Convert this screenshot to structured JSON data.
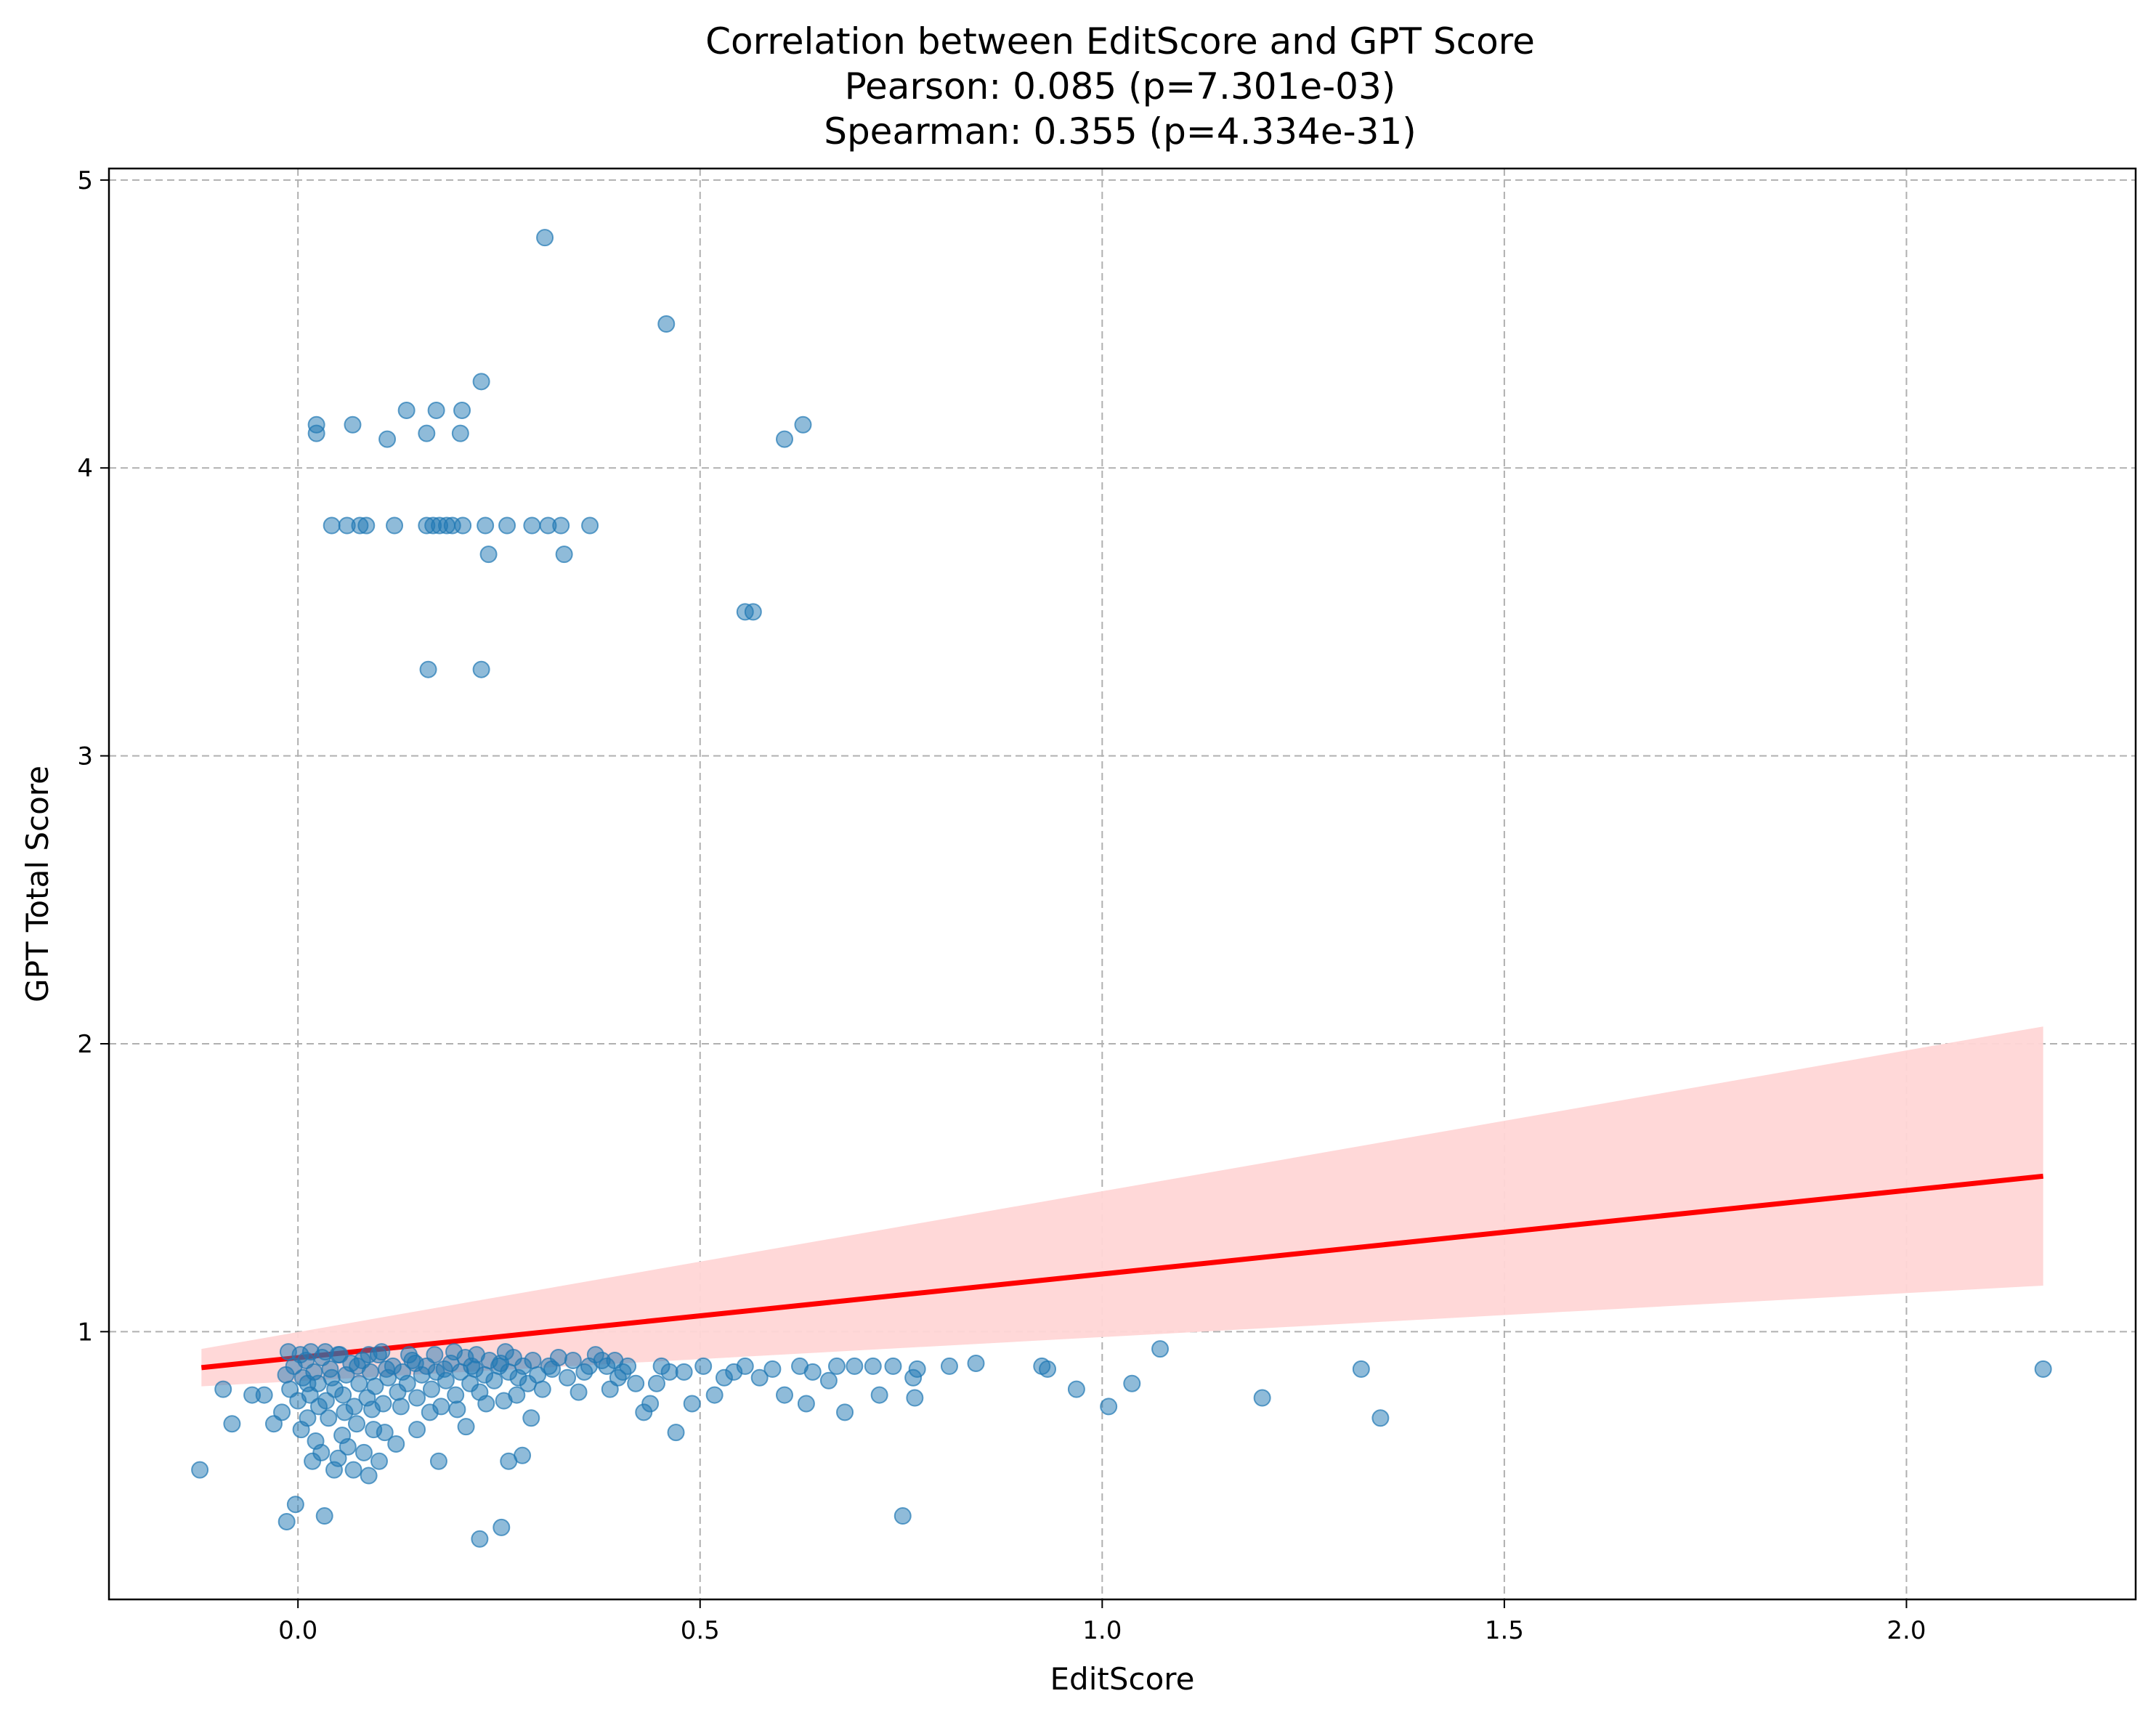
{
  "chart_data": {
    "type": "scatter",
    "title": "Correlation between EditScore and GPT Score",
    "subtitle_lines": [
      "Pearson: 0.085 (p=7.301e-03)",
      "Spearman: 0.355 (p=4.334e-31)"
    ],
    "xlabel": "EditScore",
    "ylabel": "GPT Total Score",
    "xlim": [
      -0.235,
      2.285
    ],
    "ylim": [
      0.07,
      5.04
    ],
    "xticks": [
      0.0,
      0.5,
      1.0,
      1.5,
      2.0
    ],
    "xtick_labels": [
      "0.0",
      "0.5",
      "1.0",
      "1.5",
      "2.0"
    ],
    "yticks": [
      1,
      2,
      3,
      4,
      5
    ],
    "ytick_labels": [
      "1",
      "2",
      "3",
      "4",
      "5"
    ],
    "grid": true,
    "colors": {
      "points": "#1f77b4",
      "regression_line": "#ff0000",
      "confidence_band": "#ffd6d6"
    },
    "regression": {
      "x": [
        -0.12,
        2.17
      ],
      "y": [
        0.875,
        1.54
      ],
      "ci_lower": [
        0.81,
        1.16
      ],
      "ci_upper": [
        0.94,
        2.06
      ]
    },
    "points": [
      [
        0.307,
        4.8
      ],
      [
        0.458,
        4.5
      ],
      [
        0.228,
        4.3
      ],
      [
        0.023,
        4.15
      ],
      [
        0.068,
        4.15
      ],
      [
        0.135,
        4.2
      ],
      [
        0.172,
        4.2
      ],
      [
        0.204,
        4.2
      ],
      [
        0.023,
        4.12
      ],
      [
        0.111,
        4.1
      ],
      [
        0.16,
        4.12
      ],
      [
        0.202,
        4.12
      ],
      [
        0.605,
        4.1
      ],
      [
        0.628,
        4.15
      ],
      [
        0.042,
        3.8
      ],
      [
        0.061,
        3.8
      ],
      [
        0.077,
        3.8
      ],
      [
        0.085,
        3.8
      ],
      [
        0.12,
        3.8
      ],
      [
        0.16,
        3.8
      ],
      [
        0.168,
        3.8
      ],
      [
        0.176,
        3.8
      ],
      [
        0.185,
        3.8
      ],
      [
        0.192,
        3.8
      ],
      [
        0.205,
        3.8
      ],
      [
        0.233,
        3.8
      ],
      [
        0.26,
        3.8
      ],
      [
        0.291,
        3.8
      ],
      [
        0.311,
        3.8
      ],
      [
        0.327,
        3.8
      ],
      [
        0.363,
        3.8
      ],
      [
        0.237,
        3.7
      ],
      [
        0.331,
        3.7
      ],
      [
        0.556,
        3.5
      ],
      [
        0.566,
        3.5
      ],
      [
        0.162,
        3.3
      ],
      [
        0.228,
        3.3
      ],
      [
        -0.122,
        0.52
      ],
      [
        -0.093,
        0.8
      ],
      [
        -0.082,
        0.68
      ],
      [
        -0.057,
        0.78
      ],
      [
        -0.042,
        0.78
      ],
      [
        -0.03,
        0.68
      ],
      [
        -0.02,
        0.72
      ],
      [
        -0.015,
        0.85
      ],
      [
        -0.014,
        0.34
      ],
      [
        -0.012,
        0.93
      ],
      [
        -0.003,
        0.4
      ],
      [
        0.004,
        0.66
      ],
      [
        0.012,
        0.7
      ],
      [
        0.018,
        0.55
      ],
      [
        0.022,
        0.62
      ],
      [
        0.029,
        0.58
      ],
      [
        0.033,
        0.36
      ],
      [
        0.038,
        0.7
      ],
      [
        0.045,
        0.52
      ],
      [
        0.05,
        0.56
      ],
      [
        0.055,
        0.64
      ],
      [
        0.062,
        0.6
      ],
      [
        0.069,
        0.52
      ],
      [
        0.073,
        0.68
      ],
      [
        0.082,
        0.58
      ],
      [
        0.088,
        0.5
      ],
      [
        0.094,
        0.66
      ],
      [
        0.101,
        0.55
      ],
      [
        0.108,
        0.65
      ],
      [
        0.122,
        0.61
      ],
      [
        0.148,
        0.66
      ],
      [
        0.175,
        0.55
      ],
      [
        0.209,
        0.67
      ],
      [
        0.226,
        0.28
      ],
      [
        0.253,
        0.32
      ],
      [
        0.262,
        0.55
      ],
      [
        0.279,
        0.57
      ],
      [
        0.29,
        0.7
      ],
      [
        0.304,
        0.8
      ],
      [
        0.312,
        0.88
      ],
      [
        0.335,
        0.84
      ],
      [
        0.349,
        0.79
      ],
      [
        0.362,
        0.88
      ],
      [
        0.378,
        0.9
      ],
      [
        0.388,
        0.8
      ],
      [
        0.398,
        0.84
      ],
      [
        0.41,
        0.88
      ],
      [
        0.42,
        0.82
      ],
      [
        0.43,
        0.72
      ],
      [
        0.438,
        0.75
      ],
      [
        0.446,
        0.82
      ],
      [
        0.452,
        0.88
      ],
      [
        0.462,
        0.86
      ],
      [
        0.47,
        0.65
      ],
      [
        0.48,
        0.86
      ],
      [
        0.49,
        0.75
      ],
      [
        0.504,
        0.88
      ],
      [
        0.518,
        0.78
      ],
      [
        0.53,
        0.84
      ],
      [
        0.542,
        0.86
      ],
      [
        0.556,
        0.88
      ],
      [
        0.574,
        0.84
      ],
      [
        0.59,
        0.87
      ],
      [
        0.605,
        0.78
      ],
      [
        0.624,
        0.88
      ],
      [
        0.632,
        0.75
      ],
      [
        0.64,
        0.86
      ],
      [
        0.66,
        0.83
      ],
      [
        0.67,
        0.88
      ],
      [
        0.68,
        0.72
      ],
      [
        0.692,
        0.88
      ],
      [
        0.715,
        0.88
      ],
      [
        0.723,
        0.78
      ],
      [
        0.74,
        0.88
      ],
      [
        0.752,
        0.36
      ],
      [
        0.765,
        0.84
      ],
      [
        0.767,
        0.77
      ],
      [
        0.77,
        0.87
      ],
      [
        0.81,
        0.88
      ],
      [
        0.843,
        0.89
      ],
      [
        0.925,
        0.88
      ],
      [
        0.932,
        0.87
      ],
      [
        0.968,
        0.8
      ],
      [
        1.008,
        0.74
      ],
      [
        1.037,
        0.82
      ],
      [
        1.072,
        0.94
      ],
      [
        1.199,
        0.77
      ],
      [
        1.322,
        0.87
      ],
      [
        1.346,
        0.7
      ],
      [
        2.17,
        0.87
      ],
      [
        -0.01,
        0.8
      ],
      [
        -0.005,
        0.88
      ],
      [
        0.0,
        0.76
      ],
      [
        0.006,
        0.84
      ],
      [
        0.01,
        0.9
      ],
      [
        0.015,
        0.78
      ],
      [
        0.02,
        0.86
      ],
      [
        0.025,
        0.82
      ],
      [
        0.03,
        0.91
      ],
      [
        0.035,
        0.76
      ],
      [
        0.04,
        0.87
      ],
      [
        0.046,
        0.8
      ],
      [
        0.05,
        0.92
      ],
      [
        0.056,
        0.78
      ],
      [
        0.06,
        0.85
      ],
      [
        0.066,
        0.89
      ],
      [
        0.07,
        0.74
      ],
      [
        0.076,
        0.82
      ],
      [
        0.08,
        0.9
      ],
      [
        0.086,
        0.77
      ],
      [
        0.09,
        0.86
      ],
      [
        0.096,
        0.81
      ],
      [
        0.1,
        0.92
      ],
      [
        0.106,
        0.75
      ],
      [
        0.112,
        0.84
      ],
      [
        0.118,
        0.88
      ],
      [
        0.124,
        0.79
      ],
      [
        0.13,
        0.86
      ],
      [
        0.136,
        0.82
      ],
      [
        0.142,
        0.9
      ],
      [
        0.148,
        0.77
      ],
      [
        0.154,
        0.85
      ],
      [
        0.16,
        0.88
      ],
      [
        0.166,
        0.8
      ],
      [
        0.172,
        0.86
      ],
      [
        0.178,
        0.74
      ],
      [
        0.184,
        0.83
      ],
      [
        0.19,
        0.89
      ],
      [
        0.196,
        0.78
      ],
      [
        0.202,
        0.86
      ],
      [
        0.208,
        0.91
      ],
      [
        0.214,
        0.82
      ],
      [
        0.22,
        0.87
      ],
      [
        0.226,
        0.79
      ],
      [
        0.232,
        0.85
      ],
      [
        0.238,
        0.9
      ],
      [
        0.244,
        0.83
      ],
      [
        0.25,
        0.88
      ],
      [
        0.256,
        0.76
      ],
      [
        0.262,
        0.86
      ],
      [
        0.268,
        0.91
      ],
      [
        0.274,
        0.84
      ],
      [
        0.28,
        0.88
      ],
      [
        0.286,
        0.82
      ],
      [
        0.292,
        0.9
      ],
      [
        0.298,
        0.85
      ],
      [
        0.316,
        0.87
      ],
      [
        0.324,
        0.91
      ],
      [
        0.342,
        0.9
      ],
      [
        0.356,
        0.86
      ],
      [
        0.37,
        0.92
      ],
      [
        0.384,
        0.88
      ],
      [
        0.394,
        0.9
      ],
      [
        0.404,
        0.86
      ],
      [
        0.012,
        0.82
      ],
      [
        0.026,
        0.74
      ],
      [
        0.042,
        0.84
      ],
      [
        0.058,
        0.72
      ],
      [
        0.074,
        0.88
      ],
      [
        0.092,
        0.73
      ],
      [
        0.11,
        0.87
      ],
      [
        0.128,
        0.74
      ],
      [
        0.146,
        0.89
      ],
      [
        0.164,
        0.72
      ],
      [
        0.182,
        0.87
      ],
      [
        0.198,
        0.73
      ],
      [
        0.216,
        0.88
      ],
      [
        0.234,
        0.75
      ],
      [
        0.252,
        0.89
      ],
      [
        0.272,
        0.78
      ],
      [
        0.003,
        0.92
      ],
      [
        0.016,
        0.93
      ],
      [
        0.034,
        0.93
      ],
      [
        0.052,
        0.92
      ],
      [
        0.088,
        0.92
      ],
      [
        0.104,
        0.93
      ],
      [
        0.138,
        0.92
      ],
      [
        0.17,
        0.92
      ],
      [
        0.194,
        0.93
      ],
      [
        0.222,
        0.92
      ],
      [
        0.258,
        0.93
      ]
    ]
  }
}
